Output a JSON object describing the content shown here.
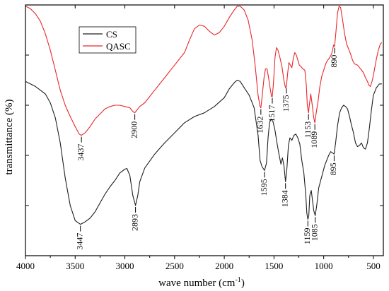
{
  "chart_data": {
    "type": "line",
    "title": "",
    "xlabel": "wave number (cm⁻¹)",
    "xlabel_main": "wave number (cm",
    "xlabel_sup": "-1",
    "xlabel_close": ")",
    "ylabel": "transmittance (%)",
    "xlim": [
      4000,
      400
    ],
    "x_reversed": true,
    "ylim": [
      0,
      100
    ],
    "y_tick_labels_shown": false,
    "x_ticks": [
      4000,
      3500,
      3000,
      2500,
      2000,
      1500,
      1000,
      500
    ],
    "x_tick_labels": [
      "4000",
      "3500",
      "3000",
      "2500",
      "2000",
      "1500",
      "1000",
      "500"
    ],
    "y_ticks": [
      0,
      20,
      40,
      60,
      80,
      100
    ],
    "grid": false,
    "legend": "top-left",
    "series": [
      {
        "name": "CS",
        "color": "#1f1f1f",
        "points": [
          [
            4000,
            69.5
          ],
          [
            3900,
            67.5
          ],
          [
            3800,
            64.5
          ],
          [
            3750,
            61
          ],
          [
            3700,
            55
          ],
          [
            3650,
            45
          ],
          [
            3600,
            31
          ],
          [
            3550,
            20
          ],
          [
            3500,
            14
          ],
          [
            3447,
            12.5
          ],
          [
            3400,
            13.5
          ],
          [
            3350,
            15
          ],
          [
            3300,
            17.5
          ],
          [
            3250,
            21
          ],
          [
            3200,
            24.5
          ],
          [
            3150,
            27.5
          ],
          [
            3100,
            30
          ],
          [
            3050,
            33
          ],
          [
            3000,
            34.5
          ],
          [
            2980,
            34.8
          ],
          [
            2950,
            32
          ],
          [
            2920,
            24
          ],
          [
            2893,
            20
          ],
          [
            2870,
            24
          ],
          [
            2850,
            29.5
          ],
          [
            2800,
            35
          ],
          [
            2700,
            40.5
          ],
          [
            2600,
            45
          ],
          [
            2500,
            49
          ],
          [
            2400,
            53
          ],
          [
            2300,
            55.5
          ],
          [
            2200,
            57
          ],
          [
            2100,
            59.5
          ],
          [
            2000,
            63
          ],
          [
            1950,
            66.5
          ],
          [
            1900,
            69
          ],
          [
            1870,
            70
          ],
          [
            1840,
            69.5
          ],
          [
            1800,
            67
          ],
          [
            1750,
            64
          ],
          [
            1700,
            59
          ],
          [
            1660,
            48
          ],
          [
            1640,
            38
          ],
          [
            1620,
            35.5
          ],
          [
            1595,
            34
          ],
          [
            1575,
            37
          ],
          [
            1560,
            47
          ],
          [
            1545,
            53
          ],
          [
            1530,
            54.5
          ],
          [
            1510,
            53.5
          ],
          [
            1490,
            50
          ],
          [
            1470,
            45
          ],
          [
            1450,
            40.5
          ],
          [
            1430,
            36.5
          ],
          [
            1415,
            39
          ],
          [
            1400,
            36
          ],
          [
            1384,
            29.5
          ],
          [
            1370,
            35
          ],
          [
            1355,
            44
          ],
          [
            1340,
            47
          ],
          [
            1320,
            46
          ],
          [
            1300,
            48
          ],
          [
            1280,
            48.5
          ],
          [
            1260,
            47
          ],
          [
            1240,
            44.5
          ],
          [
            1220,
            38
          ],
          [
            1200,
            33
          ],
          [
            1180,
            24
          ],
          [
            1170,
            17
          ],
          [
            1159,
            14.5
          ],
          [
            1150,
            16
          ],
          [
            1140,
            24
          ],
          [
            1125,
            26
          ],
          [
            1100,
            18
          ],
          [
            1085,
            16
          ],
          [
            1070,
            20
          ],
          [
            1050,
            27
          ],
          [
            1030,
            30
          ],
          [
            1010,
            33
          ],
          [
            990,
            36
          ],
          [
            970,
            38
          ],
          [
            950,
            40
          ],
          [
            930,
            41.5
          ],
          [
            910,
            41
          ],
          [
            895,
            40.5
          ],
          [
            880,
            45
          ],
          [
            860,
            52
          ],
          [
            840,
            57
          ],
          [
            820,
            59
          ],
          [
            800,
            60
          ],
          [
            780,
            59.5
          ],
          [
            760,
            58.5
          ],
          [
            740,
            55.5
          ],
          [
            720,
            52
          ],
          [
            700,
            49
          ],
          [
            680,
            45
          ],
          [
            660,
            43.5
          ],
          [
            640,
            44
          ],
          [
            620,
            45
          ],
          [
            600,
            43
          ],
          [
            580,
            42.5
          ],
          [
            560,
            45
          ],
          [
            540,
            51
          ],
          [
            520,
            58
          ],
          [
            500,
            64
          ],
          [
            470,
            67
          ],
          [
            440,
            68.5
          ],
          [
            415,
            68.5
          ]
        ]
      },
      {
        "name": "QASC",
        "color": "#e8262b",
        "points": [
          [
            4000,
            99.5
          ],
          [
            3950,
            98.5
          ],
          [
            3900,
            96.5
          ],
          [
            3850,
            93.5
          ],
          [
            3800,
            88.5
          ],
          [
            3750,
            82
          ],
          [
            3700,
            74
          ],
          [
            3650,
            66
          ],
          [
            3600,
            60
          ],
          [
            3550,
            55.5
          ],
          [
            3500,
            51.5
          ],
          [
            3460,
            48.5
          ],
          [
            3437,
            48
          ],
          [
            3400,
            49
          ],
          [
            3350,
            51.5
          ],
          [
            3300,
            54.5
          ],
          [
            3250,
            56.5
          ],
          [
            3200,
            58.5
          ],
          [
            3150,
            59.5
          ],
          [
            3100,
            60
          ],
          [
            3050,
            60
          ],
          [
            3000,
            59.5
          ],
          [
            2950,
            59
          ],
          [
            2920,
            57.5
          ],
          [
            2900,
            57
          ],
          [
            2880,
            58
          ],
          [
            2850,
            59.5
          ],
          [
            2800,
            61
          ],
          [
            2700,
            66
          ],
          [
            2600,
            71
          ],
          [
            2500,
            76
          ],
          [
            2400,
            81
          ],
          [
            2350,
            86
          ],
          [
            2300,
            90.5
          ],
          [
            2250,
            92
          ],
          [
            2200,
            91.5
          ],
          [
            2150,
            89.5
          ],
          [
            2100,
            88
          ],
          [
            2050,
            89
          ],
          [
            2000,
            91.5
          ],
          [
            1950,
            95
          ],
          [
            1900,
            98
          ],
          [
            1870,
            99.5
          ],
          [
            1840,
            99.5
          ],
          [
            1800,
            98
          ],
          [
            1760,
            94
          ],
          [
            1720,
            86
          ],
          [
            1690,
            76
          ],
          [
            1660,
            64
          ],
          [
            1640,
            59.5
          ],
          [
            1632,
            59
          ],
          [
            1620,
            63
          ],
          [
            1600,
            71
          ],
          [
            1585,
            74.5
          ],
          [
            1570,
            74.5
          ],
          [
            1555,
            71
          ],
          [
            1540,
            67
          ],
          [
            1525,
            63.5
          ],
          [
            1517,
            63.5
          ],
          [
            1505,
            69
          ],
          [
            1490,
            79
          ],
          [
            1475,
            83
          ],
          [
            1460,
            82
          ],
          [
            1440,
            79
          ],
          [
            1420,
            75.5
          ],
          [
            1400,
            70
          ],
          [
            1385,
            67
          ],
          [
            1375,
            67.5
          ],
          [
            1365,
            72
          ],
          [
            1350,
            77
          ],
          [
            1335,
            76
          ],
          [
            1320,
            75
          ],
          [
            1305,
            79
          ],
          [
            1290,
            81
          ],
          [
            1275,
            80
          ],
          [
            1260,
            78
          ],
          [
            1245,
            76
          ],
          [
            1230,
            75.5
          ],
          [
            1210,
            74.5
          ],
          [
            1190,
            74
          ],
          [
            1175,
            68
          ],
          [
            1165,
            60
          ],
          [
            1153,
            57
          ],
          [
            1145,
            60
          ],
          [
            1130,
            64.5
          ],
          [
            1115,
            60
          ],
          [
            1100,
            55
          ],
          [
            1089,
            53
          ],
          [
            1075,
            57
          ],
          [
            1055,
            62
          ],
          [
            1040,
            67
          ],
          [
            1020,
            71.5
          ],
          [
            1000,
            74
          ],
          [
            980,
            76.5
          ],
          [
            960,
            78
          ],
          [
            940,
            79
          ],
          [
            920,
            80.5
          ],
          [
            900,
            84
          ],
          [
            890,
            83.5
          ],
          [
            875,
            90
          ],
          [
            860,
            97
          ],
          [
            845,
            99.5
          ],
          [
            830,
            99
          ],
          [
            810,
            94
          ],
          [
            790,
            88.5
          ],
          [
            770,
            84.5
          ],
          [
            750,
            82.5
          ],
          [
            730,
            80.5
          ],
          [
            710,
            78
          ],
          [
            690,
            76.5
          ],
          [
            660,
            76
          ],
          [
            630,
            74.5
          ],
          [
            600,
            73
          ],
          [
            580,
            71
          ],
          [
            560,
            69.5
          ],
          [
            545,
            68
          ],
          [
            530,
            67.5
          ],
          [
            510,
            70
          ],
          [
            490,
            74
          ],
          [
            470,
            78.5
          ],
          [
            450,
            82
          ],
          [
            430,
            84.5
          ],
          [
            415,
            85
          ]
        ]
      }
    ],
    "annotations": [
      {
        "series": "CS",
        "text": "3447",
        "x": 3447
      },
      {
        "series": "CS",
        "text": "2893",
        "x": 2893
      },
      {
        "series": "CS",
        "text": "1595",
        "x": 1595
      },
      {
        "series": "CS",
        "text": "1384",
        "x": 1384
      },
      {
        "series": "CS",
        "text": "1159",
        "x": 1159
      },
      {
        "series": "CS",
        "text": "1085",
        "x": 1085
      },
      {
        "series": "CS",
        "text": "895",
        "x": 895
      },
      {
        "series": "QASC",
        "text": "3437",
        "x": 3437
      },
      {
        "series": "QASC",
        "text": "2900",
        "x": 2900
      },
      {
        "series": "QASC",
        "text": "1632",
        "x": 1632
      },
      {
        "series": "QASC",
        "text": "1517",
        "x": 1517
      },
      {
        "series": "QASC",
        "text": "1375",
        "x": 1375
      },
      {
        "series": "QASC",
        "text": "1153",
        "x": 1153
      },
      {
        "series": "QASC",
        "text": "1089",
        "x": 1089
      },
      {
        "series": "QASC",
        "text": "890",
        "x": 890
      }
    ]
  }
}
